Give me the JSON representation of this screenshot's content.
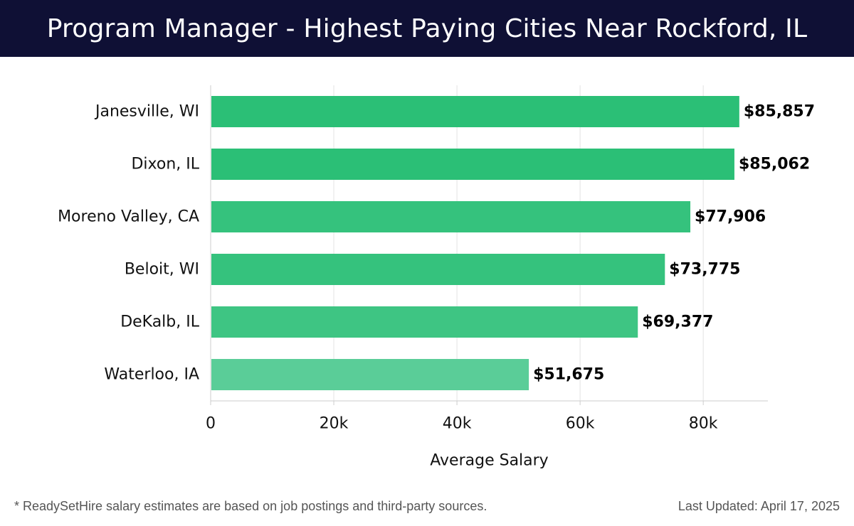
{
  "header": {
    "title": "Program Manager - Highest Paying Cities Near Rockford, IL"
  },
  "chart_data": {
    "type": "bar",
    "orientation": "horizontal",
    "categories": [
      "Janesville, WI",
      "Dixon, IL",
      "Moreno Valley, CA",
      "Beloit, WI",
      "DeKalb, IL",
      "Waterloo, IA"
    ],
    "values": [
      85857,
      85062,
      77906,
      73775,
      69377,
      51675
    ],
    "value_labels": [
      "$85,857",
      "$85,062",
      "$77,906",
      "$73,775",
      "$69,377",
      "$51,675"
    ],
    "xlabel": "Average Salary",
    "ylabel": "",
    "xlim": [
      0,
      90500
    ],
    "xticks": [
      0,
      20000,
      40000,
      60000,
      80000
    ],
    "xtick_labels": [
      "0",
      "20k",
      "40k",
      "60k",
      "80k"
    ],
    "grid": true,
    "bar_colors": [
      "#2bbf76",
      "#2bbf76",
      "#35c27d",
      "#35c27d",
      "#3ec583",
      "#5acd98"
    ]
  },
  "footer": {
    "note": "* ReadySetHire salary estimates are based on job postings and third-party sources.",
    "updated": "Last Updated: April 17, 2025"
  }
}
